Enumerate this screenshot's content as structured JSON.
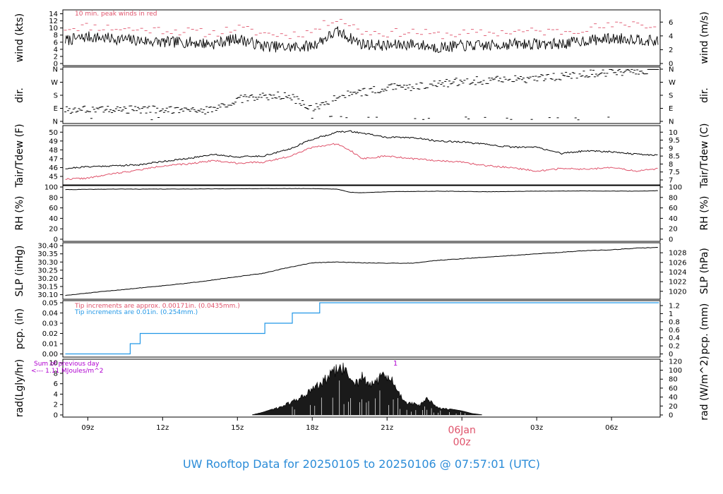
{
  "footer": {
    "title": "UW Rooftop Data for 20250105  to  20250106 @ 07:57:01  (UTC)"
  },
  "colors": {
    "black": "#000000",
    "red": "#df536b",
    "blue": "#2297e6",
    "purple": "#b000d0",
    "title_blue": "#2b8cd8",
    "date_label": "#df536b"
  },
  "x_axis": {
    "ticks": [
      "09z",
      "12z",
      "15z",
      "18z",
      "21z",
      "03z",
      "06z"
    ],
    "tick_hours": [
      9,
      12,
      15,
      18,
      21,
      27,
      30
    ],
    "date_marker": {
      "hour": 24,
      "line1": "06Jan",
      "line2": "00z"
    },
    "range_hours": [
      8.0,
      31.95
    ]
  },
  "panels": {
    "wind": {
      "left_label": "wind (kts)",
      "right_label": "wind (m/s)",
      "left_ticks": [
        "14",
        "12",
        "10",
        "8",
        "6",
        "4",
        "2",
        "0"
      ],
      "right_ticks": [
        "6",
        "4",
        "2",
        "0"
      ],
      "annotation": "10 min. peak winds in red",
      "ylim": [
        0,
        14.5
      ]
    },
    "dir": {
      "left_label": "dir.",
      "right_label": "dir.",
      "left_ticks": [
        "N",
        "W",
        "S",
        "E",
        "N"
      ],
      "right_ticks": [
        "N",
        "W",
        "S",
        "E",
        "N"
      ]
    },
    "temp": {
      "left_label": "Tair/Tdew (F)",
      "right_label": "Tair/Tdew (C)",
      "left_ticks": [
        "50",
        "49",
        "48",
        "47",
        "46",
        "45"
      ],
      "right_ticks": [
        "10",
        "9.5",
        "9",
        "8.5",
        "8",
        "7.5",
        "7"
      ],
      "ylim": [
        44.2,
        50.5
      ]
    },
    "rh": {
      "left_label": "RH (%)",
      "right_label": "RH (%)",
      "left_ticks": [
        "100",
        "80",
        "60",
        "40",
        "20",
        "0"
      ],
      "right_ticks": [
        "100",
        "80",
        "60",
        "40",
        "20",
        "0"
      ],
      "ylim": [
        0,
        100
      ]
    },
    "slp": {
      "left_label": "SLP (inHg)",
      "right_label": "SLP (hPa)",
      "left_ticks": [
        "30.40",
        "30.35",
        "30.30",
        "30.25",
        "30.20",
        "30.15",
        "30.10"
      ],
      "right_ticks": [
        "1028",
        "1026",
        "1024",
        "1022",
        "1020"
      ],
      "ylim": [
        30.085,
        30.405
      ]
    },
    "pcp": {
      "left_label": "pcp. (in)",
      "right_label": "pcp. (mm)",
      "left_ticks": [
        "0.05",
        "0.04",
        "0.03",
        "0.02",
        "0.01",
        "0.00"
      ],
      "right_ticks": [
        "1.2",
        "1",
        "0.8",
        "0.6",
        "0.4",
        "0.2",
        "0"
      ],
      "annotation1": "Tip increments are approx. 0.00171in. (0.0435mm.)",
      "annotation2": "Tip increments are 0.01in. (0.254mm.)",
      "ylim": [
        -0.001,
        0.05
      ]
    },
    "rad": {
      "left_label": "rad(Lgly/hr)",
      "right_label": "rad (W/m^2)",
      "left_ticks": [
        "10",
        "8",
        "6",
        "4",
        "2",
        "0"
      ],
      "right_ticks": [
        "120",
        "100",
        "80",
        "60",
        "40",
        "20",
        "0"
      ],
      "annotation1": "Sum of previous day",
      "annotation2": "<--- 1.11 MJoules/m^2",
      "marker": "1",
      "ylim": [
        0,
        10.3
      ]
    }
  },
  "chart_data": [
    {
      "type": "line",
      "panel": "wind",
      "series": [
        {
          "x": [
            8.1,
            9,
            10,
            11,
            12,
            13,
            14,
            15,
            16,
            17,
            18,
            19,
            20,
            21,
            22,
            23,
            24,
            25,
            26,
            27,
            28,
            29,
            30,
            31,
            31.9
          ],
          "values": [
            6.5,
            7.5,
            7,
            6.5,
            6,
            6,
            5.5,
            7,
            5,
            4.5,
            5,
            9,
            5.5,
            5,
            5.5,
            4.5,
            5,
            5,
            5.5,
            5.5,
            5.5,
            6.5,
            7,
            7,
            6
          ]
        },
        {
          "name": "10 min. peak winds",
          "x": [
            8.1,
            9,
            10,
            11,
            12,
            13,
            14,
            15,
            16,
            17,
            18,
            19,
            20,
            21,
            22,
            23,
            24,
            25,
            26,
            27,
            28,
            29,
            30,
            31,
            31.9
          ],
          "values": [
            10,
            10.5,
            10,
            9.5,
            9.5,
            9,
            8.5,
            10,
            8.5,
            8,
            9,
            13,
            9,
            8.5,
            9,
            8,
            8.5,
            8.5,
            9,
            9,
            9,
            10,
            10.5,
            11.5,
            10
          ]
        }
      ]
    },
    {
      "type": "scatter",
      "panel": "dir",
      "ylim": [
        0,
        360
      ],
      "x": [
        8.1,
        9,
        10,
        11,
        12,
        13,
        14,
        15,
        16,
        17,
        17.5,
        18,
        19,
        20,
        21,
        22,
        23,
        24,
        25,
        26,
        27,
        28,
        29,
        30,
        31,
        31.9
      ],
      "values": [
        80,
        85,
        80,
        85,
        80,
        75,
        80,
        150,
        170,
        180,
        135,
        85,
        170,
        200,
        230,
        240,
        255,
        275,
        285,
        290,
        295,
        310,
        325,
        340,
        350,
        355
      ]
    },
    {
      "type": "line",
      "panel": "temp",
      "series": [
        {
          "name": "Tair",
          "x": [
            8.1,
            9,
            10,
            11,
            12,
            13,
            14,
            15,
            16,
            17,
            18,
            19,
            19.5,
            20,
            21,
            22,
            23,
            24,
            25,
            26,
            27,
            28,
            29,
            30,
            31,
            31.9
          ],
          "values": [
            45.9,
            46.1,
            46.2,
            46.3,
            46.7,
            47.0,
            47.5,
            47.2,
            47.3,
            48.0,
            49.2,
            50.0,
            50.1,
            49.9,
            49.4,
            49.4,
            49.0,
            48.9,
            48.6,
            48.3,
            48.3,
            47.6,
            47.9,
            47.8,
            47.5,
            47.4
          ]
        },
        {
          "name": "Tdew",
          "x": [
            8.1,
            9,
            10,
            11,
            12,
            13,
            14,
            15,
            16,
            17,
            18,
            19,
            19.5,
            20,
            21,
            22,
            23,
            24,
            25,
            26,
            27,
            28,
            29,
            30,
            31,
            31.9
          ],
          "values": [
            44.7,
            44.8,
            45.3,
            45.7,
            46.2,
            46.4,
            46.8,
            46.5,
            46.6,
            47.2,
            48.3,
            48.7,
            48.0,
            47.0,
            47.3,
            47.0,
            46.8,
            46.6,
            46.2,
            46.0,
            45.6,
            45.9,
            45.8,
            46.0,
            45.6,
            45.9
          ]
        }
      ]
    },
    {
      "type": "line",
      "panel": "rh",
      "series": [
        {
          "x": [
            8.1,
            10,
            12,
            14,
            16,
            18,
            19,
            19.5,
            20,
            21,
            23,
            25,
            27,
            29,
            31,
            31.9
          ],
          "values": [
            95,
            96,
            96,
            96.5,
            97,
            97,
            96,
            90,
            89,
            91,
            92,
            91,
            92,
            92.5,
            92,
            93
          ]
        }
      ]
    },
    {
      "type": "line",
      "panel": "slp",
      "series": [
        {
          "x": [
            8.1,
            9,
            10,
            11,
            12,
            13,
            14,
            15,
            16,
            17,
            18,
            19,
            20,
            21,
            22,
            23,
            24,
            25,
            26,
            27,
            28,
            29,
            30,
            31,
            31.9
          ],
          "values": [
            30.095,
            30.11,
            30.125,
            30.14,
            30.155,
            30.17,
            30.19,
            30.21,
            30.23,
            30.265,
            30.295,
            30.3,
            30.295,
            30.293,
            30.293,
            30.31,
            30.32,
            30.33,
            30.34,
            30.35,
            30.36,
            30.37,
            30.375,
            30.385,
            30.39
          ]
        }
      ]
    },
    {
      "type": "line",
      "panel": "pcp",
      "series": [
        {
          "x": [
            8.1,
            10.7,
            10.7,
            11.1,
            11.1,
            16.1,
            16.1,
            17.2,
            17.2,
            18.3,
            18.3,
            31.9
          ],
          "values": [
            0,
            0,
            0.01,
            0.01,
            0.02,
            0.02,
            0.03,
            0.03,
            0.04,
            0.04,
            0.05,
            0.05
          ]
        }
      ]
    },
    {
      "type": "area",
      "panel": "rad",
      "x": [
        15.6,
        16,
        16.5,
        17,
        17.5,
        18,
        18.5,
        18.8,
        19.0,
        19.2,
        19.5,
        19.8,
        20.0,
        20.3,
        20.6,
        20.9,
        21.2,
        21.5,
        21.8,
        22.0,
        22.3,
        22.6,
        23.0,
        23.5,
        24.0,
        24.4,
        24.8
      ],
      "values": [
        0.05,
        0.5,
        1.3,
        2.3,
        3.6,
        5.3,
        7.3,
        8.8,
        9.6,
        10.0,
        8.0,
        6.8,
        8.3,
        6.0,
        7.6,
        8.2,
        7.2,
        4.4,
        2.6,
        2.4,
        2.0,
        3.4,
        1.6,
        1.2,
        0.8,
        0.3,
        0.05
      ]
    }
  ]
}
